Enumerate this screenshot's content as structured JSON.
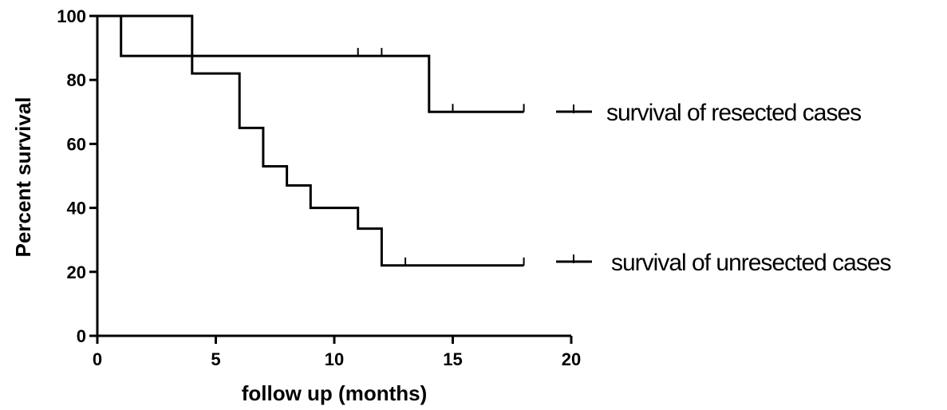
{
  "chart_data": {
    "type": "line",
    "subtype": "kaplan-meier-step",
    "xlabel": "follow up (months)",
    "ylabel": "Percent survival",
    "xlim": [
      0,
      20
    ],
    "ylim": [
      0,
      100
    ],
    "xticks": [
      0,
      5,
      10,
      15,
      20
    ],
    "yticks": [
      0,
      20,
      40,
      60,
      80,
      100
    ],
    "grid": false,
    "legend_position": "right",
    "line_color": "#000000",
    "series": [
      {
        "name": "survival of resected cases",
        "steps": [
          [
            0,
            100
          ],
          [
            1,
            87.5
          ],
          [
            14,
            70
          ],
          [
            18,
            70
          ]
        ],
        "censored": [
          [
            11,
            87.5
          ],
          [
            12,
            87.5
          ],
          [
            15,
            70
          ],
          [
            18,
            70
          ]
        ]
      },
      {
        "name": "survival of unresected cases",
        "steps": [
          [
            0,
            100
          ],
          [
            4,
            82
          ],
          [
            6,
            65
          ],
          [
            7,
            53
          ],
          [
            8,
            47
          ],
          [
            9,
            40
          ],
          [
            11,
            33.5
          ],
          [
            12,
            22
          ],
          [
            18,
            22
          ]
        ],
        "censored": [
          [
            13,
            22
          ],
          [
            18,
            22
          ]
        ]
      }
    ]
  }
}
